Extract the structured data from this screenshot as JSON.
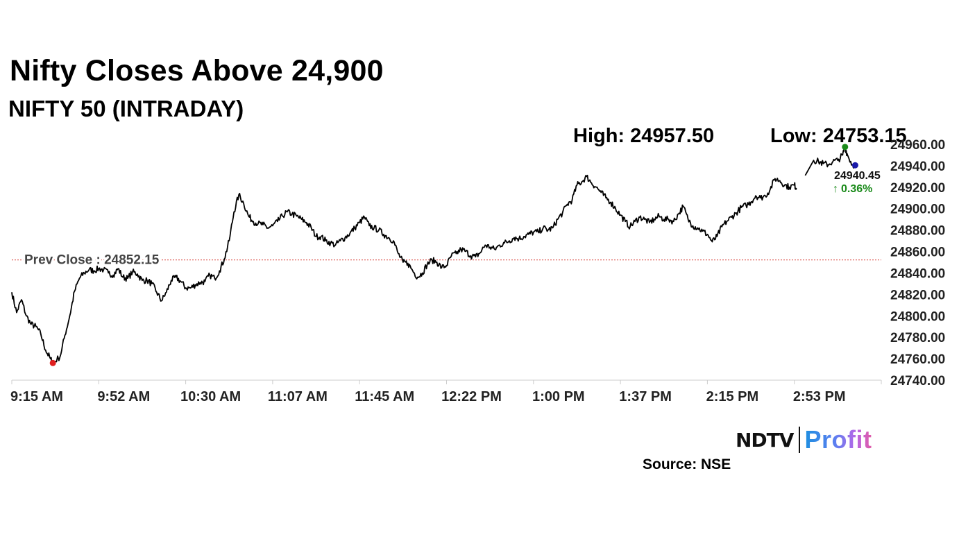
{
  "header": {
    "title": "Nifty Closes Above 24,900",
    "subtitle": "NIFTY 50 (INTRADAY)",
    "high_label": "High: 24957.50",
    "low_label": "Low: 24753.15"
  },
  "footer": {
    "brand_left": "NDTV",
    "brand_right": "Profit",
    "source": "Source: NSE"
  },
  "colors": {
    "line": "#000000",
    "prev_close_line": "#d9534f",
    "high_marker": "#1a8a1a",
    "low_marker": "#e02020",
    "last_marker": "#1a1aa8",
    "change_positive": "#1a8a1a",
    "axis": "#cccccc"
  },
  "chart_data": {
    "type": "line",
    "ylim": [
      24740,
      24960
    ],
    "yticks": [
      "24740.00",
      "24760.00",
      "24780.00",
      "24800.00",
      "24820.00",
      "24840.00",
      "24860.00",
      "24880.00",
      "24900.00",
      "24920.00",
      "24940.00",
      "24960.00"
    ],
    "xtick_labels": [
      "9:15 AM",
      "9:52 AM",
      "10:30 AM",
      "11:07 AM",
      "11:45 AM",
      "12:22 PM",
      "1:00 PM",
      "1:37 PM",
      "2:15 PM",
      "2:53 PM"
    ],
    "prev_close": {
      "label": "Prev Close : 24852.15",
      "value": 24852.15
    },
    "last": {
      "value_label": "24940.45",
      "change_label": "0.36%",
      "change_arrow": "↑",
      "value": 24940.45
    },
    "high": 24957.5,
    "low": 24753.15,
    "series": [
      {
        "values": [
          [
            0,
            24822
          ],
          [
            1,
            24803
          ],
          [
            2,
            24815
          ],
          [
            3,
            24800
          ],
          [
            4,
            24792
          ],
          [
            5,
            24790
          ],
          [
            6,
            24783
          ],
          [
            7,
            24768
          ],
          [
            8,
            24760
          ],
          [
            8.5,
            24756
          ],
          [
            10,
            24762
          ],
          [
            11,
            24782
          ],
          [
            12,
            24800
          ],
          [
            13,
            24823
          ],
          [
            14,
            24835
          ],
          [
            15,
            24840
          ],
          [
            16,
            24843
          ],
          [
            17,
            24842
          ],
          [
            18,
            24844
          ],
          [
            19,
            24843
          ],
          [
            20,
            24840
          ],
          [
            21,
            24838
          ],
          [
            22,
            24844
          ],
          [
            23,
            24836
          ],
          [
            24,
            24835
          ],
          [
            25,
            24841
          ],
          [
            26,
            24839
          ],
          [
            27,
            24833
          ],
          [
            28,
            24833
          ],
          [
            29,
            24830
          ],
          [
            30,
            24822
          ],
          [
            31,
            24814
          ],
          [
            32,
            24822
          ],
          [
            33,
            24833
          ],
          [
            34,
            24836
          ],
          [
            35,
            24832
          ],
          [
            36,
            24826
          ],
          [
            37,
            24826
          ],
          [
            38,
            24829
          ],
          [
            39,
            24831
          ],
          [
            40,
            24832
          ],
          [
            41,
            24838
          ],
          [
            42,
            24835
          ],
          [
            43,
            24842
          ],
          [
            44,
            24853
          ],
          [
            45,
            24870
          ],
          [
            46,
            24897
          ],
          [
            47,
            24913
          ],
          [
            48,
            24905
          ],
          [
            49,
            24893
          ],
          [
            50,
            24888
          ],
          [
            51,
            24886
          ],
          [
            52,
            24885
          ],
          [
            53,
            24882
          ],
          [
            54,
            24884
          ],
          [
            55,
            24888
          ],
          [
            56,
            24893
          ],
          [
            57,
            24897
          ],
          [
            58,
            24895
          ],
          [
            59,
            24893
          ],
          [
            60,
            24890
          ],
          [
            61,
            24887
          ],
          [
            62,
            24882
          ],
          [
            63,
            24874
          ],
          [
            64,
            24874
          ],
          [
            65,
            24870
          ],
          [
            66,
            24868
          ],
          [
            67,
            24866
          ],
          [
            68,
            24870
          ],
          [
            69,
            24873
          ],
          [
            70,
            24877
          ],
          [
            71,
            24882
          ],
          [
            72,
            24887
          ],
          [
            73,
            24892
          ],
          [
            74,
            24884
          ],
          [
            75,
            24882
          ],
          [
            76,
            24880
          ],
          [
            77,
            24876
          ],
          [
            78,
            24873
          ],
          [
            79,
            24870
          ],
          [
            80,
            24858
          ],
          [
            81,
            24850
          ],
          [
            82,
            24849
          ],
          [
            83,
            24842
          ],
          [
            84,
            24836
          ],
          [
            85,
            24840
          ],
          [
            86,
            24848
          ],
          [
            87,
            24852
          ],
          [
            88,
            24850
          ],
          [
            89,
            24845
          ],
          [
            90,
            24847
          ],
          [
            91,
            24856
          ],
          [
            92,
            24858
          ],
          [
            93,
            24862
          ],
          [
            94,
            24860
          ],
          [
            95,
            24856
          ],
          [
            96,
            24855
          ],
          [
            97,
            24859
          ],
          [
            98,
            24866
          ],
          [
            99,
            24864
          ],
          [
            100,
            24862
          ],
          [
            101,
            24866
          ],
          [
            102,
            24868
          ],
          [
            103,
            24870
          ],
          [
            104,
            24873
          ],
          [
            105,
            24872
          ],
          [
            106,
            24874
          ],
          [
            107,
            24876
          ],
          [
            108,
            24878
          ],
          [
            109,
            24878
          ],
          [
            110,
            24882
          ],
          [
            111,
            24880
          ],
          [
            112,
            24882
          ],
          [
            113,
            24890
          ],
          [
            114,
            24896
          ],
          [
            115,
            24904
          ],
          [
            116,
            24908
          ],
          [
            117,
            24922
          ],
          [
            118,
            24925
          ],
          [
            119,
            24930
          ],
          [
            120,
            24924
          ],
          [
            121,
            24920
          ],
          [
            122,
            24915
          ],
          [
            123,
            24910
          ],
          [
            124,
            24906
          ],
          [
            125,
            24900
          ],
          [
            126,
            24894
          ],
          [
            127,
            24888
          ],
          [
            128,
            24883
          ],
          [
            129,
            24888
          ],
          [
            130,
            24892
          ],
          [
            131,
            24890
          ],
          [
            132,
            24887
          ],
          [
            133,
            24890
          ],
          [
            134,
            24893
          ],
          [
            135,
            24890
          ],
          [
            136,
            24890
          ],
          [
            137,
            24888
          ],
          [
            138,
            24895
          ],
          [
            139,
            24902
          ],
          [
            140,
            24890
          ],
          [
            141,
            24884
          ],
          [
            142,
            24882
          ],
          [
            143,
            24879
          ],
          [
            144,
            24876
          ],
          [
            145,
            24869
          ],
          [
            146,
            24874
          ],
          [
            147,
            24883
          ],
          [
            148,
            24888
          ],
          [
            149,
            24892
          ],
          [
            150,
            24896
          ],
          [
            151,
            24901
          ],
          [
            152,
            24903
          ],
          [
            153,
            24906
          ],
          [
            154,
            24912
          ],
          [
            155,
            24910
          ],
          [
            156,
            24912
          ],
          [
            157,
            24918
          ],
          [
            158,
            24928
          ],
          [
            159,
            24926
          ],
          [
            160,
            24922
          ],
          [
            161,
            24920
          ],
          [
            162,
            24922
          ],
          [
            162.5,
            24919
          ],
          [
            166,
            24945
          ],
          [
            167,
            24944
          ],
          [
            168,
            24942
          ],
          [
            169,
            24941
          ],
          [
            170,
            24944
          ],
          [
            171,
            24945
          ],
          [
            172,
            24950
          ],
          [
            172.5,
            24957.5
          ],
          [
            173,
            24950
          ],
          [
            174,
            24941
          ],
          [
            174.6,
            24940.45
          ]
        ]
      }
    ]
  }
}
